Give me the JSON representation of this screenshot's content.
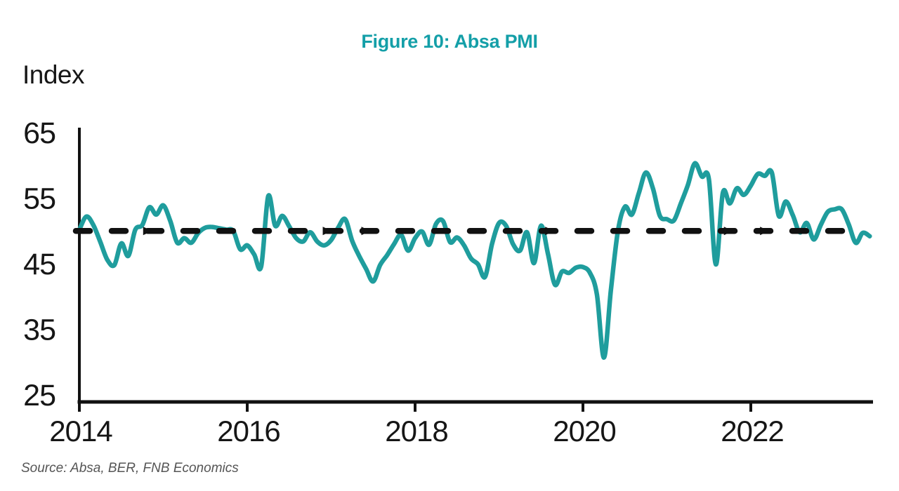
{
  "title": "Figure 10: Absa PMI",
  "y_axis_label": "Index",
  "source_note": "Source: Absa, BER, FNB Economics",
  "colors": {
    "title": "#149FA8",
    "line": "#1F9D9D",
    "axis": "#111111",
    "dashed_reference": "#111111",
    "tick_text": "#161616",
    "source_text": "#555555",
    "background": "#FFFFFF"
  },
  "chart_data": {
    "type": "line",
    "title": "Figure 10: Absa PMI",
    "ylabel": "Index",
    "xlabel": "",
    "ylim": [
      25,
      65
    ],
    "y_ticks": [
      65,
      55,
      45,
      35,
      25
    ],
    "x_ticks": [
      2014,
      2016,
      2018,
      2020,
      2022
    ],
    "x_range_years": [
      2014.0,
      2023.45
    ],
    "grid": false,
    "legend": "none",
    "reference_line": {
      "value": 50,
      "style": "dashed",
      "arrow_marker_years": [
        2014.81,
        2016.95,
        2017.41,
        2019.6,
        2021.73,
        2022.16
      ]
    },
    "series": [
      {
        "name": "Absa PMI",
        "frequency": "monthly",
        "start_year": 2014,
        "start_month": 1,
        "values": [
          50.2,
          52.2,
          50.9,
          48.3,
          45.6,
          44.8,
          48.1,
          46.2,
          50.2,
          50.9,
          53.6,
          52.5,
          53.9,
          51.5,
          48.2,
          48.9,
          48.2,
          49.7,
          50.5,
          50.6,
          50.4,
          50.2,
          50.0,
          47.2,
          47.8,
          46.4,
          44.6,
          55.3,
          50.8,
          52.3,
          50.7,
          48.9,
          48.4,
          49.8,
          48.4,
          47.8,
          48.6,
          50.5,
          51.8,
          48.5,
          46.2,
          44.2,
          42.3,
          44.8,
          46.3,
          48.0,
          49.4,
          47.0,
          48.9,
          49.9,
          47.9,
          51.1,
          51.5,
          48.3,
          49.0,
          47.8,
          45.8,
          44.9,
          43.0,
          48.0,
          51.2,
          50.8,
          48.0,
          47.0,
          49.8,
          45.1,
          50.8,
          46.5,
          41.8,
          43.8,
          43.6,
          44.4,
          44.5,
          43.6,
          40.3,
          30.7,
          41.0,
          50.0,
          53.7,
          52.5,
          55.8,
          58.9,
          56.5,
          52.3,
          51.8,
          51.6,
          54.2,
          57.0,
          60.3,
          58.3,
          57.9,
          44.9,
          55.8,
          54.2,
          56.5,
          55.5,
          56.9,
          58.7,
          58.4,
          58.9,
          52.3,
          54.5,
          52.4,
          49.8,
          51.2,
          48.7,
          50.9,
          52.9,
          53.3,
          53.3,
          51.0,
          48.2,
          49.7,
          49.2
        ]
      }
    ]
  }
}
